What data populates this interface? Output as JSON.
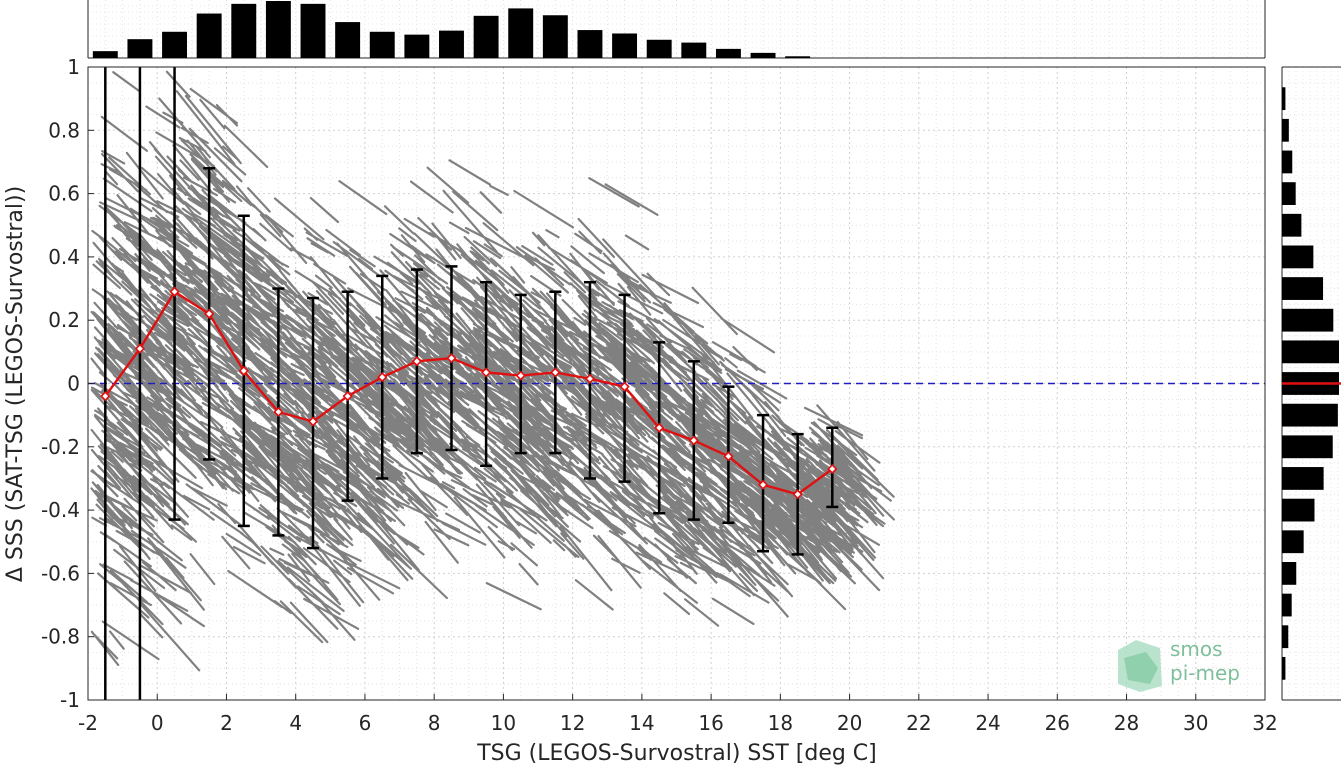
{
  "chart_data": {
    "type": "scatter",
    "xlabel": "TSG (LEGOS-Survostral) SST [deg C]",
    "ylabel": "Δ SSS (SAT-TSG (LEGOS-Survostral))",
    "xlim": [
      -2,
      32
    ],
    "ylim": [
      -1,
      1
    ],
    "x_ticks": [
      "-2",
      "0",
      "2",
      "4",
      "6",
      "8",
      "10",
      "12",
      "14",
      "16",
      "18",
      "20",
      "22",
      "24",
      "26",
      "28",
      "30",
      "32"
    ],
    "y_ticks": [
      "1",
      "0.8",
      "0.6",
      "0.4",
      "0.2",
      "0",
      "-0.2",
      "-0.4",
      "-0.6",
      "-0.8",
      "-1"
    ],
    "grid": true,
    "reference_line": {
      "y": 0,
      "style": "dashed",
      "color": "#1f1fbf"
    },
    "colors": {
      "scatter": "#808080",
      "median": "#e01010",
      "errorbar": "#000000",
      "histogram": "#000000",
      "watermark": "#7fbf9b"
    },
    "median_series": {
      "x": [
        -1.5,
        -0.5,
        0.5,
        1.5,
        2.5,
        3.5,
        4.5,
        5.5,
        6.5,
        7.5,
        8.5,
        9.5,
        10.5,
        11.5,
        12.5,
        13.5,
        14.5,
        15.5,
        16.5,
        17.5,
        18.5,
        19.5
      ],
      "y": [
        -0.04,
        0.11,
        0.29,
        0.22,
        0.04,
        -0.09,
        -0.12,
        -0.04,
        0.02,
        0.07,
        0.08,
        0.035,
        0.025,
        0.035,
        0.015,
        -0.01,
        -0.14,
        -0.18,
        -0.23,
        -0.32,
        -0.35,
        -0.27
      ],
      "low": [
        -1.0,
        -1.0,
        -0.43,
        -0.24,
        -0.45,
        -0.48,
        -0.52,
        -0.37,
        -0.3,
        -0.22,
        -0.21,
        -0.26,
        -0.22,
        -0.22,
        -0.3,
        -0.31,
        -0.41,
        -0.43,
        -0.44,
        -0.53,
        -0.54,
        -0.39
      ],
      "high": [
        1.0,
        1.0,
        1.0,
        0.68,
        0.53,
        0.3,
        0.27,
        0.29,
        0.34,
        0.36,
        0.37,
        0.32,
        0.28,
        0.29,
        0.32,
        0.28,
        0.13,
        0.07,
        -0.01,
        -0.1,
        -0.16,
        -0.14
      ]
    },
    "x_histogram": {
      "bin_centers": [
        -1.5,
        -0.5,
        0.5,
        1.5,
        2.5,
        3.5,
        4.5,
        5.5,
        6.5,
        7.5,
        8.5,
        9.5,
        10.5,
        11.5,
        12.5,
        13.5,
        14.5,
        15.5,
        16.5,
        17.5,
        18.5
      ],
      "relative_counts": [
        0.12,
        0.33,
        0.46,
        0.78,
        0.95,
        1.0,
        0.95,
        0.63,
        0.46,
        0.41,
        0.48,
        0.74,
        0.87,
        0.75,
        0.49,
        0.43,
        0.32,
        0.27,
        0.16,
        0.09,
        0.03
      ]
    },
    "y_histogram": {
      "bin_centers": [
        0.9,
        0.8,
        0.7,
        0.6,
        0.5,
        0.4,
        0.3,
        0.2,
        0.1,
        0.0,
        -0.1,
        -0.2,
        -0.3,
        -0.4,
        -0.5,
        -0.6,
        -0.7,
        -0.8,
        -0.9
      ],
      "relative_counts": [
        0.06,
        0.12,
        0.18,
        0.24,
        0.34,
        0.55,
        0.72,
        0.9,
        1.0,
        1.0,
        0.98,
        0.89,
        0.73,
        0.57,
        0.38,
        0.25,
        0.17,
        0.11,
        0.06
      ],
      "median": 0.0
    }
  },
  "watermark": {
    "line1": "smos",
    "line2": "pi-mep"
  }
}
